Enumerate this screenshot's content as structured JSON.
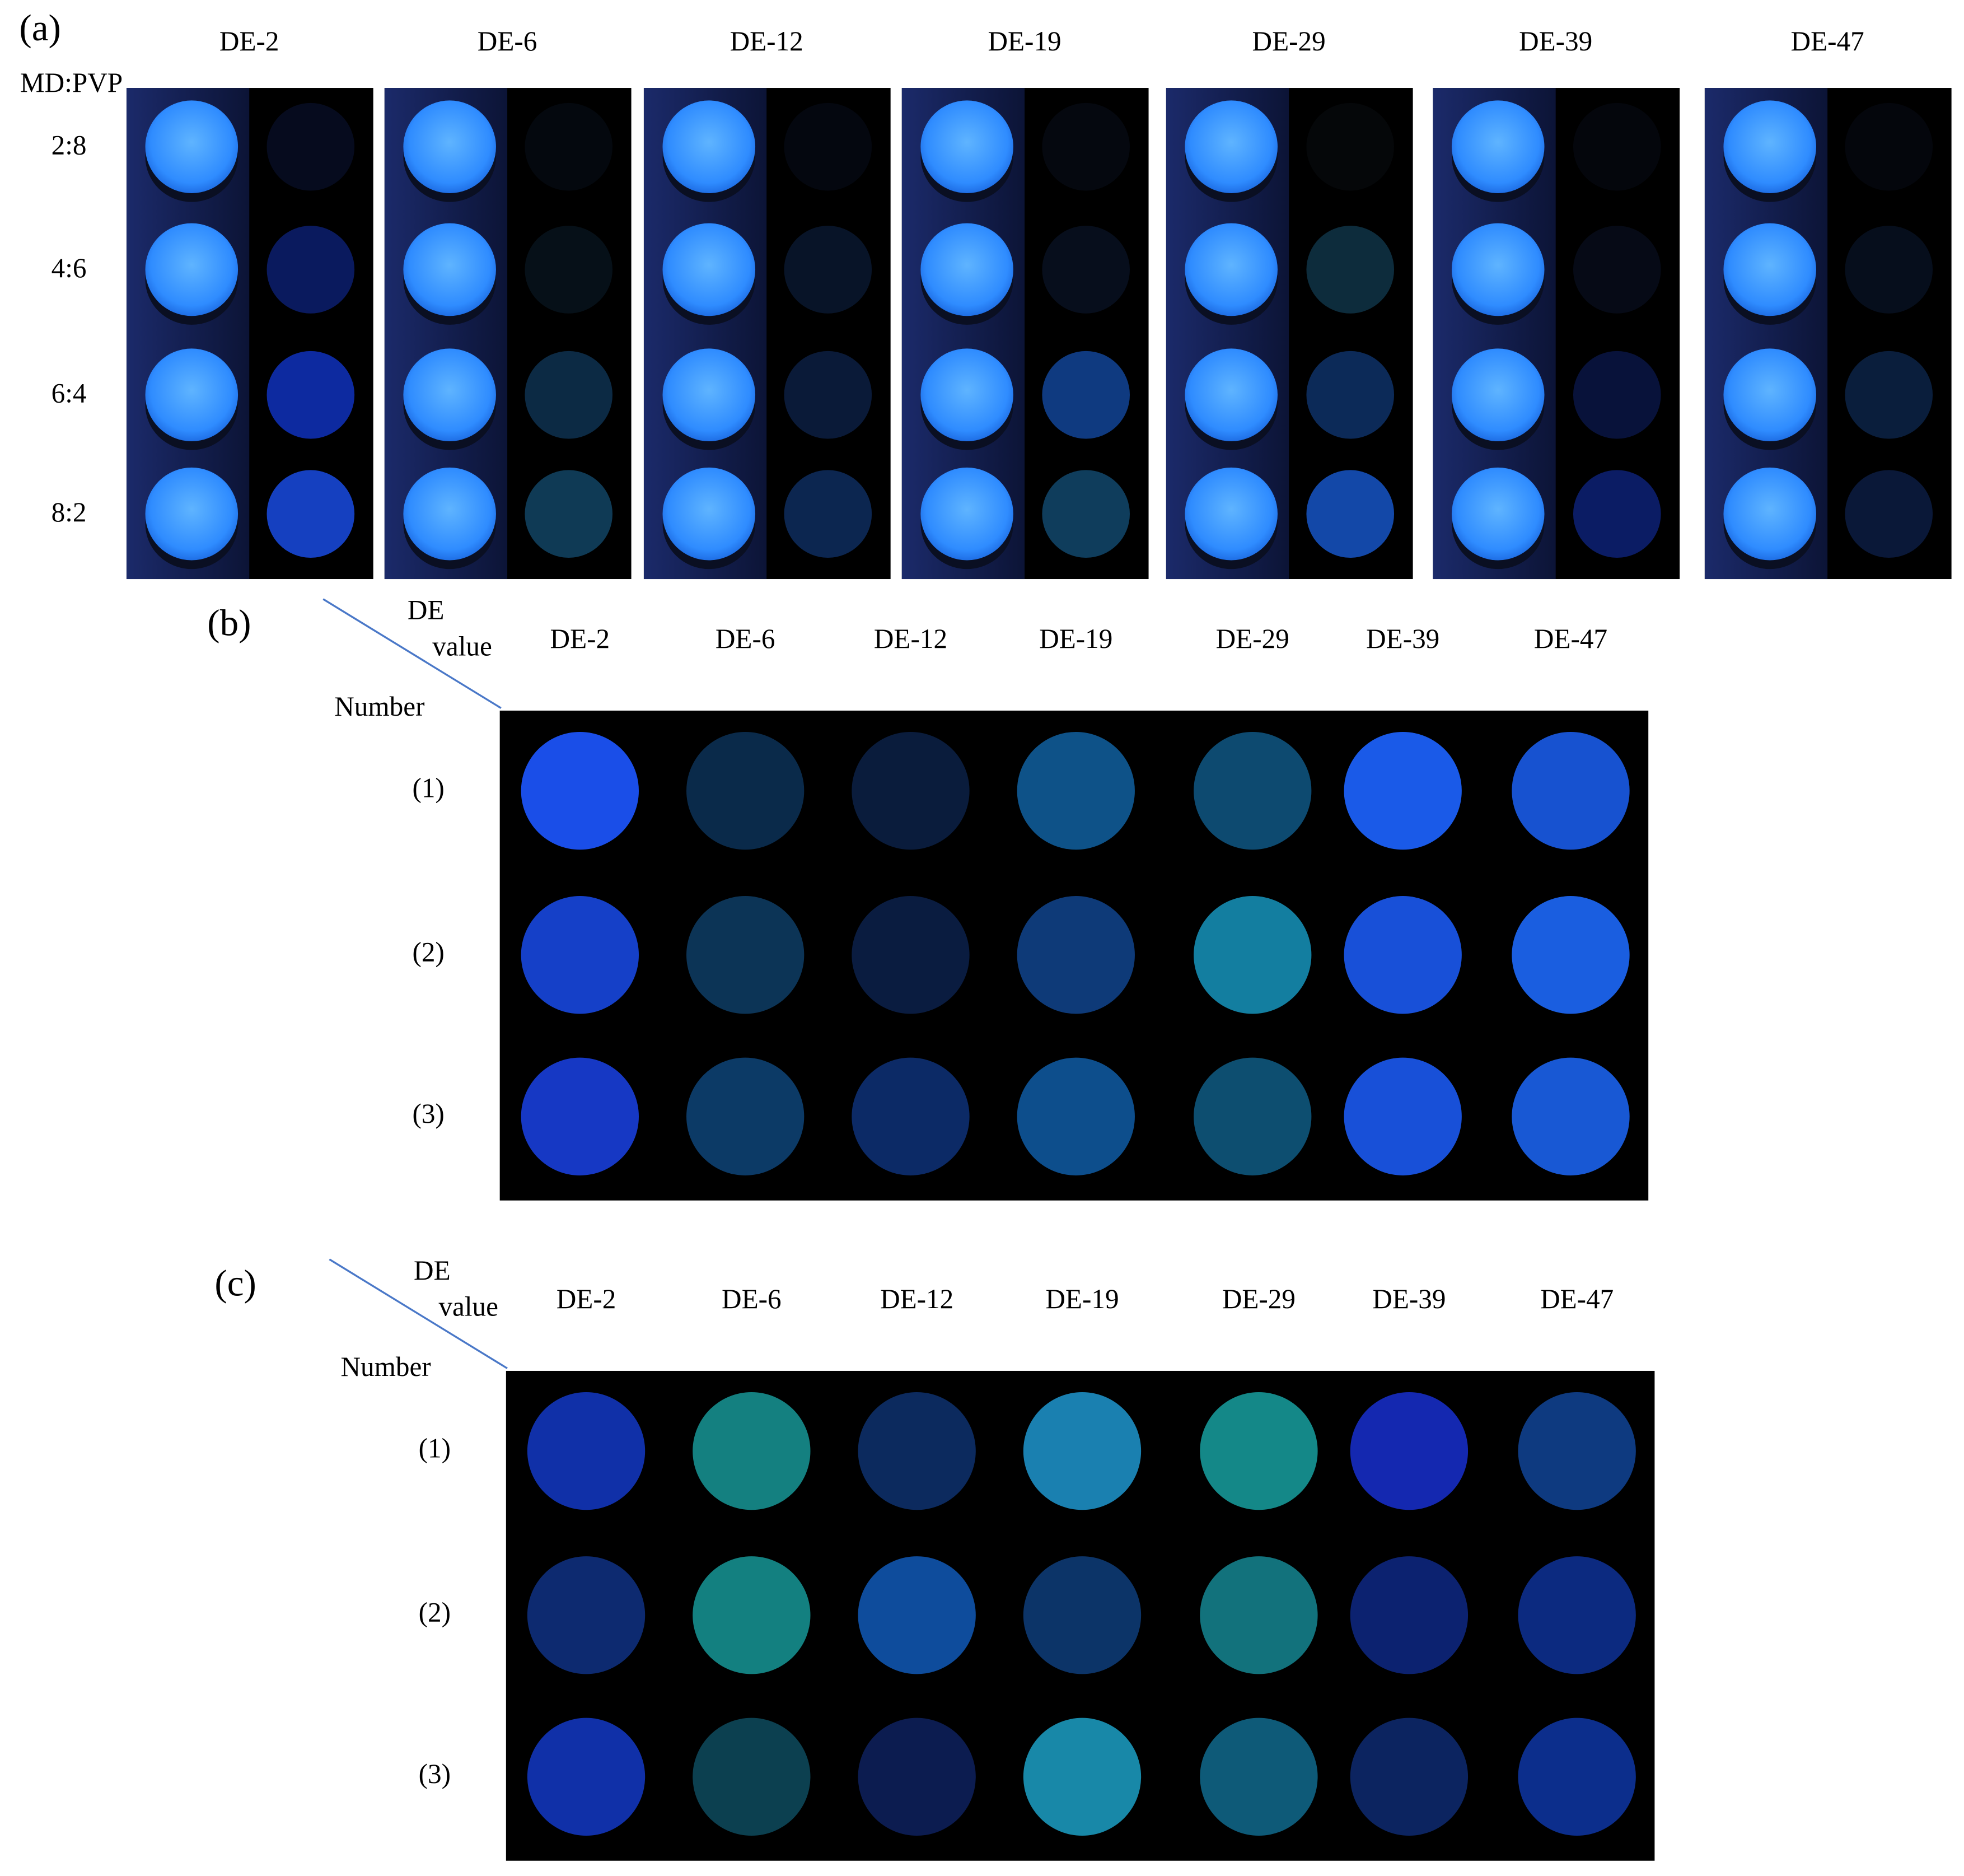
{
  "panel_a": {
    "label": "(a)",
    "row_header": "MD:PVP",
    "columns": [
      "DE-2",
      "DE-6",
      "DE-12",
      "DE-19",
      "DE-29",
      "DE-39",
      "DE-47"
    ],
    "rows": [
      "2:8",
      "4:6",
      "6:4",
      "8:2"
    ]
  },
  "panel_b": {
    "label": "(b)",
    "header_top": "DE",
    "header_value": "value",
    "header_number": "Number",
    "columns": [
      "DE-2",
      "DE-6",
      "DE-12",
      "DE-19",
      "DE-29",
      "DE-39",
      "DE-47"
    ],
    "rows": [
      "(1)",
      "(2)",
      "(3)"
    ]
  },
  "panel_c": {
    "label": "(c)",
    "header_top": "DE",
    "header_value": "value",
    "header_number": "Number",
    "columns": [
      "DE-2",
      "DE-6",
      "DE-12",
      "DE-19",
      "DE-29",
      "DE-39",
      "DE-47"
    ],
    "rows": [
      "(1)",
      "(2)",
      "(3)"
    ]
  }
}
